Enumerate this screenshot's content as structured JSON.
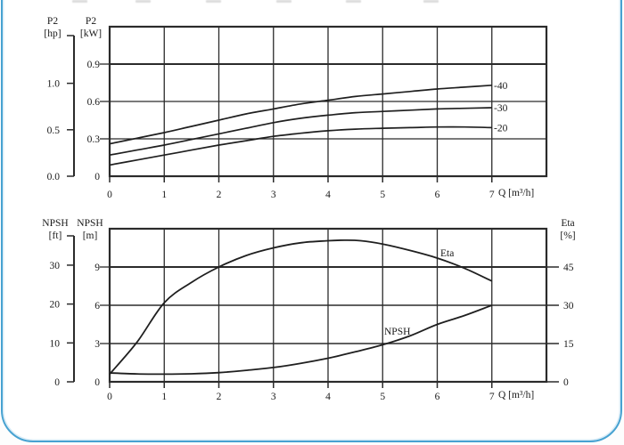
{
  "page": {
    "background_color": "#ffffff",
    "card_border_color": "#47a2d1",
    "ink_color": "#1f1f1f"
  },
  "chart_data": [
    {
      "type": "line",
      "description_visible_text_only": "",
      "xlabel": "Q [m³/h]",
      "x_ticks": [
        "0",
        "1",
        "2",
        "3",
        "4",
        "5",
        "6",
        "7"
      ],
      "x_tick_values": [
        0,
        1,
        2,
        3,
        4,
        5,
        6,
        7
      ],
      "x_range": [
        0,
        8
      ],
      "y_left_aux": {
        "name": "P2",
        "unit": "[hp]",
        "ticks": [
          "0.0",
          "0.5",
          "1.0"
        ],
        "tick_values": [
          0,
          0.5,
          1.0
        ]
      },
      "y_left_main": {
        "name": "P2",
        "unit": "[kW]",
        "ticks": [
          "0",
          "0.3",
          "0.6",
          "0.9"
        ],
        "tick_values": [
          0,
          0.3,
          0.6,
          0.9
        ],
        "range": [
          0,
          1.2
        ],
        "major_gridline_value": 0.9
      },
      "grid": true,
      "series": [
        {
          "label": "-40",
          "axis": "left",
          "points": [
            [
              0,
              0.26
            ],
            [
              0.5,
              0.305
            ],
            [
              1,
              0.35
            ],
            [
              1.5,
              0.4
            ],
            [
              2,
              0.45
            ],
            [
              2.5,
              0.5
            ],
            [
              3,
              0.54
            ],
            [
              3.5,
              0.58
            ],
            [
              4,
              0.61
            ],
            [
              4.5,
              0.64
            ],
            [
              5,
              0.66
            ],
            [
              5.5,
              0.68
            ],
            [
              6,
              0.7
            ],
            [
              6.5,
              0.715
            ],
            [
              7,
              0.73
            ]
          ]
        },
        {
          "label": "-30",
          "axis": "left",
          "points": [
            [
              0,
              0.17
            ],
            [
              0.5,
              0.21
            ],
            [
              1,
              0.25
            ],
            [
              1.5,
              0.295
            ],
            [
              2,
              0.34
            ],
            [
              2.5,
              0.385
            ],
            [
              3,
              0.43
            ],
            [
              3.5,
              0.465
            ],
            [
              4,
              0.49
            ],
            [
              4.5,
              0.51
            ],
            [
              5,
              0.52
            ],
            [
              5.5,
              0.53
            ],
            [
              6,
              0.54
            ],
            [
              6.5,
              0.545
            ],
            [
              7,
              0.55
            ]
          ]
        },
        {
          "label": "-20",
          "axis": "left",
          "points": [
            [
              0,
              0.09
            ],
            [
              0.5,
              0.13
            ],
            [
              1,
              0.17
            ],
            [
              1.5,
              0.21
            ],
            [
              2,
              0.25
            ],
            [
              2.5,
              0.285
            ],
            [
              3,
              0.32
            ],
            [
              3.5,
              0.345
            ],
            [
              4,
              0.365
            ],
            [
              4.5,
              0.378
            ],
            [
              5,
              0.385
            ],
            [
              5.5,
              0.39
            ],
            [
              6,
              0.395
            ],
            [
              6.5,
              0.395
            ],
            [
              7,
              0.39
            ]
          ]
        }
      ]
    },
    {
      "type": "line",
      "xlabel": "Q [m³/h]",
      "x_ticks": [
        "0",
        "1",
        "2",
        "3",
        "4",
        "5",
        "6",
        "7"
      ],
      "x_tick_values": [
        0,
        1,
        2,
        3,
        4,
        5,
        6,
        7
      ],
      "x_range": [
        0,
        8
      ],
      "y_left_aux": {
        "name": "NPSH",
        "unit": "[ft]",
        "ticks": [
          "0",
          "10",
          "20",
          "30"
        ],
        "tick_values": [
          0,
          10,
          20,
          30
        ]
      },
      "y_left_main": {
        "name": "NPSH",
        "unit": "[m]",
        "ticks": [
          "0",
          "3",
          "6",
          "9"
        ],
        "tick_values": [
          0,
          3,
          6,
          9
        ],
        "range": [
          0,
          12
        ],
        "major_gridline_value": 9
      },
      "y_right": {
        "name": "Eta",
        "unit": "[%]",
        "ticks": [
          "0",
          "15",
          "30",
          "45"
        ],
        "tick_values": [
          0,
          15,
          30,
          45
        ],
        "range": [
          0,
          60
        ]
      },
      "grid": true,
      "series": [
        {
          "label": "Eta",
          "axis": "right",
          "points": [
            [
              0,
              3
            ],
            [
              0.5,
              15.5
            ],
            [
              1,
              31
            ],
            [
              1.5,
              39
            ],
            [
              2,
              45
            ],
            [
              2.5,
              49.5
            ],
            [
              3,
              52.5
            ],
            [
              3.5,
              54.5
            ],
            [
              4,
              55.3
            ],
            [
              4.3,
              55.5
            ],
            [
              4.6,
              55.3
            ],
            [
              5,
              54
            ],
            [
              5.5,
              51.5
            ],
            [
              6,
              48.5
            ],
            [
              6.5,
              44.5
            ],
            [
              7,
              39.5
            ]
          ]
        },
        {
          "label": "NPSH",
          "axis": "left",
          "points": [
            [
              0,
              0.7
            ],
            [
              0.5,
              0.62
            ],
            [
              1,
              0.6
            ],
            [
              1.5,
              0.63
            ],
            [
              2,
              0.72
            ],
            [
              2.5,
              0.9
            ],
            [
              3,
              1.12
            ],
            [
              3.5,
              1.45
            ],
            [
              4,
              1.85
            ],
            [
              4.5,
              2.35
            ],
            [
              5,
              2.9
            ],
            [
              5.5,
              3.6
            ],
            [
              6,
              4.5
            ],
            [
              6.5,
              5.2
            ],
            [
              7,
              6.0
            ]
          ]
        }
      ]
    }
  ]
}
